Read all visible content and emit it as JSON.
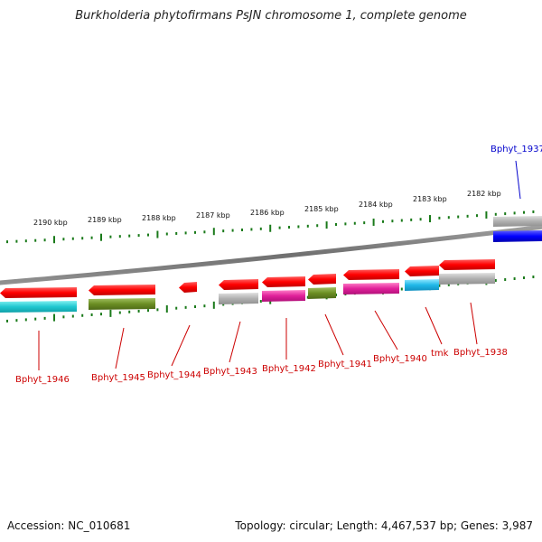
{
  "header": {
    "title": "Burkholderia phytofirmans PsJN chromosome 1, complete genome"
  },
  "footer": {
    "accession": "Accession: NC_010681",
    "summary": "Topology: circular; Length: 4,467,537 bp; Genes: 3,987"
  },
  "scale": {
    "ticks": [
      "2190 kbp",
      "2189 kbp",
      "2188 kbp",
      "2187 kbp",
      "2186 kbp",
      "2185 kbp",
      "2184 kbp",
      "2183 kbp",
      "2182 kbp"
    ]
  },
  "genes": {
    "forward": [
      "Bphyt_1937"
    ],
    "reverse": [
      "Bphyt_1946",
      "Bphyt_1945",
      "Bphyt_1944",
      "Bphyt_1943",
      "Bphyt_1942",
      "Bphyt_1941",
      "Bphyt_1940",
      "tmk",
      "Bphyt_1938"
    ]
  },
  "colors": {
    "cds": "#ff0000",
    "forward_label": "#0000cc",
    "reverse_label": "#cc0000",
    "tick": "#1a7a1a",
    "backbone": "#808080",
    "cog_cyan": "#20c8d0",
    "cog_olive": "#6b8e23",
    "cog_gray": "#b0b0b0",
    "cog_magenta": "#e0209a",
    "cog_sky": "#20b8e8",
    "cog_blue": "#0000ff"
  }
}
